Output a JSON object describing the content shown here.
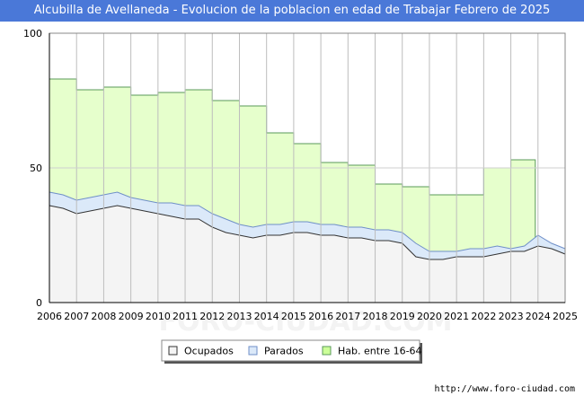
{
  "header": {
    "title": "Alcubilla de Avellaneda - Evolucion de la poblacion en edad de Trabajar Febrero de 2025"
  },
  "footer": {
    "url": "http://www.foro-ciudad.com"
  },
  "watermark": "FORO-CIUDAD.COM",
  "colors": {
    "hab_fill": "#e6ffcc",
    "hab_line": "#5a9a5a",
    "parados_fill": "#dbe9f9",
    "parados_line": "#6f8fc8",
    "ocupados_fill": "#f4f4f4",
    "ocupados_line": "#333333",
    "grid": "#cfcfcf",
    "title_bg": "#4a78d8"
  },
  "chart_data": {
    "type": "area",
    "title": "Alcubilla de Avellaneda - Evolucion de la poblacion en edad de Trabajar Febrero de 2025",
    "xlabel": "",
    "ylabel": "",
    "xlim": [
      2006,
      2025
    ],
    "ylim": [
      0,
      100
    ],
    "x_ticks": [
      "2006",
      "2007",
      "2008",
      "2009",
      "2010",
      "2011",
      "2012",
      "2013",
      "2014",
      "2015",
      "2016",
      "2017",
      "2018",
      "2019",
      "2020",
      "2021",
      "2022",
      "2023",
      "2024",
      "2025"
    ],
    "y_ticks": [
      "0",
      "50",
      "100"
    ],
    "legend_position": "bottom-center",
    "series": [
      {
        "name": "Hab. entre 16-64",
        "x": [
          2006,
          2007,
          2008,
          2009,
          2010,
          2011,
          2012,
          2013,
          2014,
          2015,
          2016,
          2017,
          2018,
          2019,
          2020,
          2021,
          2022,
          2023,
          2023.9
        ],
        "values": [
          83,
          79,
          80,
          77,
          78,
          79,
          75,
          73,
          63,
          59,
          52,
          51,
          44,
          43,
          40,
          40,
          50,
          53,
          53
        ]
      },
      {
        "name": "Parados",
        "x": [
          2006,
          2006.5,
          2007,
          2007.5,
          2008,
          2008.5,
          2009,
          2009.5,
          2010,
          2010.5,
          2011,
          2011.5,
          2012,
          2012.5,
          2013,
          2013.5,
          2014,
          2014.5,
          2015,
          2015.5,
          2016,
          2016.5,
          2017,
          2017.5,
          2018,
          2018.5,
          2019,
          2019.5,
          2020,
          2020.5,
          2021,
          2021.5,
          2022,
          2022.5,
          2023,
          2023.5,
          2024,
          2024.5,
          2025
        ],
        "values": [
          41,
          40,
          38,
          39,
          40,
          41,
          39,
          38,
          37,
          37,
          36,
          36,
          33,
          31,
          29,
          28,
          29,
          29,
          30,
          30,
          29,
          29,
          28,
          28,
          27,
          27,
          26,
          22,
          19,
          19,
          19,
          20,
          20,
          21,
          20,
          21,
          25,
          22,
          20
        ]
      },
      {
        "name": "Ocupados",
        "x": [
          2006,
          2006.5,
          2007,
          2007.5,
          2008,
          2008.5,
          2009,
          2009.5,
          2010,
          2010.5,
          2011,
          2011.5,
          2012,
          2012.5,
          2013,
          2013.5,
          2014,
          2014.5,
          2015,
          2015.5,
          2016,
          2016.5,
          2017,
          2017.5,
          2018,
          2018.5,
          2019,
          2019.5,
          2020,
          2020.5,
          2021,
          2021.5,
          2022,
          2022.5,
          2023,
          2023.5,
          2024,
          2024.5,
          2025
        ],
        "values": [
          36,
          35,
          33,
          34,
          35,
          36,
          35,
          34,
          33,
          32,
          31,
          31,
          28,
          26,
          25,
          24,
          25,
          25,
          26,
          26,
          25,
          25,
          24,
          24,
          23,
          23,
          22,
          17,
          16,
          16,
          17,
          17,
          17,
          18,
          19,
          19,
          21,
          20,
          18
        ]
      }
    ]
  },
  "legend": {
    "items": [
      {
        "label": "Ocupados",
        "color": "#f4f4f4",
        "border": "#333333"
      },
      {
        "label": "Parados",
        "color": "#dbe9f9",
        "border": "#6f8fc8"
      },
      {
        "label": "Hab. entre 16-64",
        "color": "#ccff99",
        "border": "#5a9a5a"
      }
    ]
  }
}
